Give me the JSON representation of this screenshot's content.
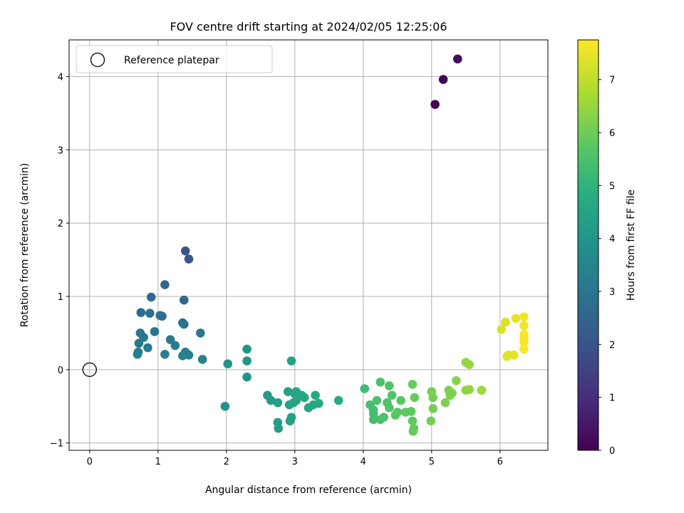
{
  "chart_data": {
    "type": "scatter",
    "title": "FOV centre drift starting at 2024/02/05 12:25:06",
    "xlabel": "Angular distance from reference (arcmin)",
    "ylabel": "Rotation from reference (arcmin)",
    "xlim": [
      -0.3,
      6.7
    ],
    "ylim": [
      -1.1,
      4.5
    ],
    "xticks": [
      0,
      1,
      2,
      3,
      4,
      5,
      6
    ],
    "yticks": [
      -1,
      0,
      1,
      2,
      3,
      4
    ],
    "grid": true,
    "colormap": "viridis",
    "colorbar": {
      "label": "Hours from first FF file",
      "range": [
        0,
        7.75
      ],
      "ticks": [
        0,
        1,
        2,
        3,
        4,
        5,
        6,
        7
      ]
    },
    "legend": {
      "placement": "top-left",
      "entries": [
        {
          "label": "Reference platepar",
          "marker": "open-circle",
          "color": "#000000"
        }
      ]
    },
    "reference_point": {
      "x": 0,
      "y": 0
    },
    "points": [
      {
        "x": 5.05,
        "y": 3.62,
        "c": 0.0
      },
      {
        "x": 5.17,
        "y": 3.96,
        "c": 0.1
      },
      {
        "x": 5.38,
        "y": 4.24,
        "c": 0.2
      },
      {
        "x": 1.4,
        "y": 1.62,
        "c": 2.0
      },
      {
        "x": 1.45,
        "y": 1.51,
        "c": 2.1
      },
      {
        "x": 1.1,
        "y": 1.16,
        "c": 2.5
      },
      {
        "x": 0.9,
        "y": 0.99,
        "c": 2.6
      },
      {
        "x": 1.38,
        "y": 0.95,
        "c": 2.6
      },
      {
        "x": 0.75,
        "y": 0.78,
        "c": 2.7
      },
      {
        "x": 0.88,
        "y": 0.77,
        "c": 2.8
      },
      {
        "x": 1.03,
        "y": 0.74,
        "c": 2.8
      },
      {
        "x": 1.06,
        "y": 0.73,
        "c": 2.8
      },
      {
        "x": 1.36,
        "y": 0.64,
        "c": 2.85
      },
      {
        "x": 1.38,
        "y": 0.62,
        "c": 2.9
      },
      {
        "x": 0.95,
        "y": 0.52,
        "c": 3.0
      },
      {
        "x": 0.74,
        "y": 0.5,
        "c": 3.0
      },
      {
        "x": 1.62,
        "y": 0.5,
        "c": 3.1
      },
      {
        "x": 0.79,
        "y": 0.44,
        "c": 3.1
      },
      {
        "x": 1.18,
        "y": 0.41,
        "c": 3.1
      },
      {
        "x": 0.72,
        "y": 0.36,
        "c": 3.2
      },
      {
        "x": 1.25,
        "y": 0.33,
        "c": 3.2
      },
      {
        "x": 0.85,
        "y": 0.3,
        "c": 3.2
      },
      {
        "x": 0.71,
        "y": 0.24,
        "c": 3.2
      },
      {
        "x": 1.4,
        "y": 0.24,
        "c": 3.3
      },
      {
        "x": 0.7,
        "y": 0.21,
        "c": 3.3
      },
      {
        "x": 1.1,
        "y": 0.21,
        "c": 3.3
      },
      {
        "x": 1.45,
        "y": 0.2,
        "c": 3.3
      },
      {
        "x": 1.36,
        "y": 0.19,
        "c": 3.4
      },
      {
        "x": 1.65,
        "y": 0.14,
        "c": 3.4
      },
      {
        "x": 2.3,
        "y": 0.28,
        "c": 4.0
      },
      {
        "x": 2.3,
        "y": 0.12,
        "c": 4.0
      },
      {
        "x": 2.02,
        "y": 0.08,
        "c": 3.9
      },
      {
        "x": 2.3,
        "y": -0.1,
        "c": 4.0
      },
      {
        "x": 1.98,
        "y": -0.5,
        "c": 3.9
      },
      {
        "x": 2.6,
        "y": -0.35,
        "c": 4.2
      },
      {
        "x": 2.65,
        "y": -0.42,
        "c": 4.2
      },
      {
        "x": 2.75,
        "y": -0.45,
        "c": 4.3
      },
      {
        "x": 2.75,
        "y": -0.72,
        "c": 4.3
      },
      {
        "x": 2.76,
        "y": -0.8,
        "c": 4.3
      },
      {
        "x": 2.9,
        "y": -0.3,
        "c": 4.4
      },
      {
        "x": 2.92,
        "y": -0.48,
        "c": 4.4
      },
      {
        "x": 2.95,
        "y": 0.12,
        "c": 4.4
      },
      {
        "x": 2.95,
        "y": -0.65,
        "c": 4.4
      },
      {
        "x": 2.93,
        "y": -0.7,
        "c": 4.4
      },
      {
        "x": 3.0,
        "y": -0.33,
        "c": 4.5
      },
      {
        "x": 3.02,
        "y": -0.3,
        "c": 4.5
      },
      {
        "x": 3.02,
        "y": -0.42,
        "c": 4.5
      },
      {
        "x": 2.98,
        "y": -0.45,
        "c": 4.5
      },
      {
        "x": 3.1,
        "y": -0.35,
        "c": 4.5
      },
      {
        "x": 3.14,
        "y": -0.38,
        "c": 4.6
      },
      {
        "x": 3.2,
        "y": -0.52,
        "c": 4.6
      },
      {
        "x": 3.3,
        "y": -0.35,
        "c": 4.6
      },
      {
        "x": 3.27,
        "y": -0.48,
        "c": 4.6
      },
      {
        "x": 3.35,
        "y": -0.46,
        "c": 4.6
      },
      {
        "x": 3.64,
        "y": -0.42,
        "c": 4.7
      },
      {
        "x": 4.02,
        "y": -0.26,
        "c": 5.3
      },
      {
        "x": 4.1,
        "y": -0.48,
        "c": 5.4
      },
      {
        "x": 4.15,
        "y": -0.55,
        "c": 5.4
      },
      {
        "x": 4.15,
        "y": -0.6,
        "c": 5.4
      },
      {
        "x": 4.15,
        "y": -0.68,
        "c": 5.4
      },
      {
        "x": 4.2,
        "y": -0.42,
        "c": 5.5
      },
      {
        "x": 4.25,
        "y": -0.17,
        "c": 5.5
      },
      {
        "x": 4.25,
        "y": -0.68,
        "c": 5.5
      },
      {
        "x": 4.3,
        "y": -0.65,
        "c": 5.5
      },
      {
        "x": 4.35,
        "y": -0.45,
        "c": 5.6
      },
      {
        "x": 4.38,
        "y": -0.22,
        "c": 5.6
      },
      {
        "x": 4.38,
        "y": -0.52,
        "c": 5.6
      },
      {
        "x": 4.42,
        "y": -0.35,
        "c": 5.6
      },
      {
        "x": 4.47,
        "y": -0.62,
        "c": 5.7
      },
      {
        "x": 4.5,
        "y": -0.58,
        "c": 5.7
      },
      {
        "x": 4.55,
        "y": -0.42,
        "c": 5.7
      },
      {
        "x": 4.62,
        "y": -0.58,
        "c": 5.8
      },
      {
        "x": 4.7,
        "y": -0.57,
        "c": 5.8
      },
      {
        "x": 4.72,
        "y": -0.7,
        "c": 5.8
      },
      {
        "x": 4.72,
        "y": -0.2,
        "c": 5.9
      },
      {
        "x": 4.75,
        "y": -0.38,
        "c": 5.9
      },
      {
        "x": 4.74,
        "y": -0.8,
        "c": 5.9
      },
      {
        "x": 4.73,
        "y": -0.84,
        "c": 5.9
      },
      {
        "x": 5.0,
        "y": -0.3,
        "c": 6.1
      },
      {
        "x": 5.02,
        "y": -0.38,
        "c": 6.1
      },
      {
        "x": 5.02,
        "y": -0.53,
        "c": 6.1
      },
      {
        "x": 4.99,
        "y": -0.7,
        "c": 6.1
      },
      {
        "x": 5.2,
        "y": -0.45,
        "c": 6.2
      },
      {
        "x": 5.25,
        "y": -0.28,
        "c": 6.2
      },
      {
        "x": 5.27,
        "y": -0.35,
        "c": 6.2
      },
      {
        "x": 5.3,
        "y": -0.32,
        "c": 6.2
      },
      {
        "x": 5.36,
        "y": -0.15,
        "c": 6.3
      },
      {
        "x": 5.5,
        "y": 0.1,
        "c": 6.5
      },
      {
        "x": 5.55,
        "y": 0.07,
        "c": 6.5
      },
      {
        "x": 5.5,
        "y": -0.28,
        "c": 6.4
      },
      {
        "x": 5.55,
        "y": -0.27,
        "c": 6.4
      },
      {
        "x": 5.73,
        "y": -0.28,
        "c": 6.6
      },
      {
        "x": 6.02,
        "y": 0.55,
        "c": 7.3
      },
      {
        "x": 6.08,
        "y": 0.65,
        "c": 7.3
      },
      {
        "x": 6.1,
        "y": 0.18,
        "c": 7.4
      },
      {
        "x": 6.12,
        "y": 0.2,
        "c": 7.4
      },
      {
        "x": 6.2,
        "y": 0.2,
        "c": 7.4
      },
      {
        "x": 6.23,
        "y": 0.7,
        "c": 7.5
      },
      {
        "x": 6.35,
        "y": 0.72,
        "c": 7.6
      },
      {
        "x": 6.35,
        "y": 0.6,
        "c": 7.6
      },
      {
        "x": 6.35,
        "y": 0.48,
        "c": 7.7
      },
      {
        "x": 6.35,
        "y": 0.42,
        "c": 7.7
      },
      {
        "x": 6.35,
        "y": 0.38,
        "c": 7.7
      },
      {
        "x": 6.35,
        "y": 0.28,
        "c": 7.7
      }
    ]
  }
}
